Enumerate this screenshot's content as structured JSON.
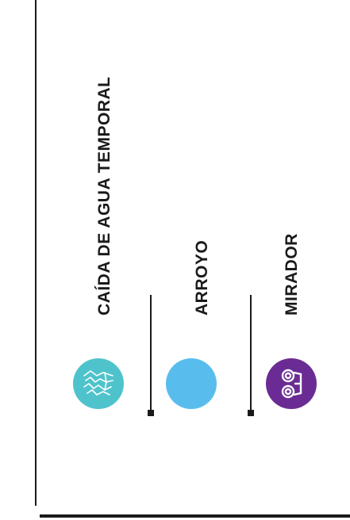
{
  "legend": {
    "items": [
      {
        "label": "CAÍDA DE AGUA TEMPORAL",
        "icon": "waterfall-icon",
        "color": "#4fc3cc"
      },
      {
        "label": "ARROYO",
        "icon": "stream-icon",
        "color": "#58bdec"
      },
      {
        "label": "MIRADOR",
        "icon": "binoculars-icon",
        "color": "#6a2c94"
      }
    ]
  }
}
